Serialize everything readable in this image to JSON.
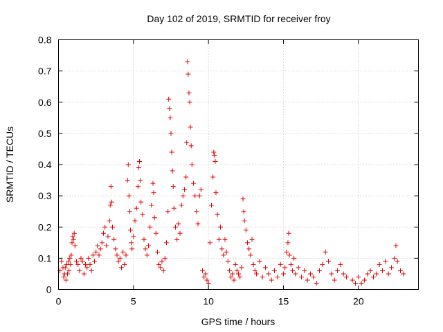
{
  "chart_data": {
    "type": "scatter",
    "title": "Day 102 of 2019, SRMTID for receiver froy",
    "xlabel": "GPS time / hours",
    "ylabel": "SRMTID / TECUs",
    "xlim": [
      0,
      24
    ],
    "ylim": [
      0,
      0.8
    ],
    "xticks": [
      0,
      5,
      10,
      15,
      20
    ],
    "xtick_labels": [
      "0",
      "5",
      "10",
      "15",
      "20"
    ],
    "yticks": [
      0,
      0.1,
      0.2,
      0.3,
      0.4,
      0.5,
      0.6,
      0.7,
      0.8
    ],
    "ytick_labels": [
      "0",
      "0.1",
      "0.2",
      "0.3",
      "0.4",
      "0.5",
      "0.6",
      "0.7",
      "0.8"
    ],
    "grid": true,
    "marker": "+",
    "color": "#e00000",
    "series": [
      {
        "name": "SRMTID",
        "points": [
          [
            0.1,
            0.06
          ],
          [
            0.2,
            0.09
          ],
          [
            0.3,
            0.07
          ],
          [
            0.35,
            0.04
          ],
          [
            0.4,
            0.05
          ],
          [
            0.45,
            0.07
          ],
          [
            0.5,
            0.03
          ],
          [
            0.55,
            0.08
          ],
          [
            0.6,
            0.05
          ],
          [
            0.65,
            0.09
          ],
          [
            0.7,
            0.06
          ],
          [
            0.75,
            0.1
          ],
          [
            0.8,
            0.08
          ],
          [
            0.85,
            0.11
          ],
          [
            0.9,
            0.15
          ],
          [
            0.95,
            0.17
          ],
          [
            1.0,
            0.16
          ],
          [
            1.05,
            0.18
          ],
          [
            1.1,
            0.14
          ],
          [
            1.2,
            0.09
          ],
          [
            1.3,
            0.08
          ],
          [
            1.4,
            0.06
          ],
          [
            1.5,
            0.1
          ],
          [
            1.6,
            0.09
          ],
          [
            1.7,
            0.05
          ],
          [
            1.8,
            0.08
          ],
          [
            1.9,
            0.07
          ],
          [
            2.0,
            0.1
          ],
          [
            2.1,
            0.08
          ],
          [
            2.2,
            0.06
          ],
          [
            2.3,
            0.11
          ],
          [
            2.4,
            0.09
          ],
          [
            2.5,
            0.12
          ],
          [
            2.6,
            0.14
          ],
          [
            2.7,
            0.11
          ],
          [
            2.8,
            0.13
          ],
          [
            2.9,
            0.15
          ],
          [
            3.0,
            0.18
          ],
          [
            3.1,
            0.2
          ],
          [
            3.2,
            0.14
          ],
          [
            3.3,
            0.17
          ],
          [
            3.4,
            0.22
          ],
          [
            3.45,
            0.27
          ],
          [
            3.5,
            0.33
          ],
          [
            3.55,
            0.28
          ],
          [
            3.6,
            0.2
          ],
          [
            3.7,
            0.16
          ],
          [
            3.8,
            0.13
          ],
          [
            3.9,
            0.11
          ],
          [
            4.0,
            0.09
          ],
          [
            4.1,
            0.1
          ],
          [
            4.2,
            0.07
          ],
          [
            4.3,
            0.12
          ],
          [
            4.4,
            0.08
          ],
          [
            4.5,
            0.11
          ],
          [
            4.6,
            0.35
          ],
          [
            4.65,
            0.4
          ],
          [
            4.7,
            0.3
          ],
          [
            4.75,
            0.25
          ],
          [
            4.8,
            0.19
          ],
          [
            4.85,
            0.15
          ],
          [
            4.9,
            0.13
          ],
          [
            5.0,
            0.17
          ],
          [
            5.1,
            0.22
          ],
          [
            5.2,
            0.26
          ],
          [
            5.3,
            0.33
          ],
          [
            5.35,
            0.39
          ],
          [
            5.4,
            0.41
          ],
          [
            5.45,
            0.35
          ],
          [
            5.5,
            0.28
          ],
          [
            5.6,
            0.24
          ],
          [
            5.7,
            0.16
          ],
          [
            5.8,
            0.13
          ],
          [
            5.9,
            0.11
          ],
          [
            6.0,
            0.14
          ],
          [
            6.1,
            0.2
          ],
          [
            6.2,
            0.27
          ],
          [
            6.3,
            0.34
          ],
          [
            6.35,
            0.31
          ],
          [
            6.4,
            0.23
          ],
          [
            6.5,
            0.18
          ],
          [
            6.6,
            0.12
          ],
          [
            6.7,
            0.08
          ],
          [
            6.8,
            0.07
          ],
          [
            6.9,
            0.09
          ],
          [
            7.0,
            0.06
          ],
          [
            7.1,
            0.1
          ],
          [
            7.2,
            0.15
          ],
          [
            7.3,
            0.25
          ],
          [
            7.35,
            0.61
          ],
          [
            7.4,
            0.58
          ],
          [
            7.45,
            0.55
          ],
          [
            7.5,
            0.5
          ],
          [
            7.55,
            0.44
          ],
          [
            7.6,
            0.38
          ],
          [
            7.65,
            0.33
          ],
          [
            7.7,
            0.26
          ],
          [
            7.8,
            0.2
          ],
          [
            7.9,
            0.16
          ],
          [
            8.0,
            0.21
          ],
          [
            8.1,
            0.18
          ],
          [
            8.2,
            0.27
          ],
          [
            8.3,
            0.3
          ],
          [
            8.4,
            0.32
          ],
          [
            8.5,
            0.36
          ],
          [
            8.55,
            0.47
          ],
          [
            8.6,
            0.73
          ],
          [
            8.65,
            0.69
          ],
          [
            8.7,
            0.63
          ],
          [
            8.75,
            0.6
          ],
          [
            8.8,
            0.52
          ],
          [
            8.85,
            0.46
          ],
          [
            8.9,
            0.4
          ],
          [
            9.0,
            0.34
          ],
          [
            9.1,
            0.3
          ],
          [
            9.2,
            0.25
          ],
          [
            9.3,
            0.21
          ],
          [
            9.4,
            0.3
          ],
          [
            9.5,
            0.32
          ],
          [
            9.6,
            0.06
          ],
          [
            9.7,
            0.04
          ],
          [
            9.8,
            0.05
          ],
          [
            9.9,
            0.03
          ],
          [
            10.0,
            0.02
          ],
          [
            10.1,
            0.15
          ],
          [
            10.2,
            0.27
          ],
          [
            10.3,
            0.36
          ],
          [
            10.35,
            0.44
          ],
          [
            10.4,
            0.43
          ],
          [
            10.45,
            0.41
          ],
          [
            10.5,
            0.31
          ],
          [
            10.6,
            0.24
          ],
          [
            10.7,
            0.16
          ],
          [
            10.8,
            0.2
          ],
          [
            10.9,
            0.13
          ],
          [
            11.0,
            0.11
          ],
          [
            11.1,
            0.16
          ],
          [
            11.2,
            0.12
          ],
          [
            11.3,
            0.09
          ],
          [
            11.4,
            0.06
          ],
          [
            11.5,
            0.04
          ],
          [
            11.6,
            0.05
          ],
          [
            11.7,
            0.03
          ],
          [
            11.8,
            0.08
          ],
          [
            11.9,
            0.06
          ],
          [
            12.0,
            0.05
          ],
          [
            12.1,
            0.04
          ],
          [
            12.2,
            0.07
          ],
          [
            12.3,
            0.29
          ],
          [
            12.35,
            0.25
          ],
          [
            12.4,
            0.22
          ],
          [
            12.5,
            0.19
          ],
          [
            12.6,
            0.15
          ],
          [
            12.7,
            0.13
          ],
          [
            12.8,
            0.11
          ],
          [
            12.9,
            0.16
          ],
          [
            13.0,
            0.08
          ],
          [
            13.1,
            0.06
          ],
          [
            13.2,
            0.05
          ],
          [
            13.4,
            0.09
          ],
          [
            13.6,
            0.04
          ],
          [
            13.8,
            0.07
          ],
          [
            14.0,
            0.05
          ],
          [
            14.2,
            0.03
          ],
          [
            14.4,
            0.06
          ],
          [
            14.6,
            0.04
          ],
          [
            14.8,
            0.08
          ],
          [
            15.0,
            0.05
          ],
          [
            15.1,
            0.07
          ],
          [
            15.2,
            0.12
          ],
          [
            15.3,
            0.15
          ],
          [
            15.35,
            0.18
          ],
          [
            15.4,
            0.11
          ],
          [
            15.5,
            0.08
          ],
          [
            15.6,
            0.06
          ],
          [
            15.7,
            0.1
          ],
          [
            15.8,
            0.05
          ],
          [
            16.0,
            0.07
          ],
          [
            16.2,
            0.04
          ],
          [
            16.4,
            0.06
          ],
          [
            16.6,
            0.03
          ],
          [
            16.8,
            0.05
          ],
          [
            17.0,
            0.04
          ],
          [
            17.2,
            0.02
          ],
          [
            17.4,
            0.06
          ],
          [
            17.6,
            0.08
          ],
          [
            17.8,
            0.12
          ],
          [
            18.0,
            0.09
          ],
          [
            18.2,
            0.05
          ],
          [
            18.4,
            0.03
          ],
          [
            18.6,
            0.06
          ],
          [
            18.8,
            0.08
          ],
          [
            19.0,
            0.05
          ],
          [
            19.2,
            0.04
          ],
          [
            19.6,
            0.03
          ],
          [
            19.8,
            0.02
          ],
          [
            20.0,
            0.04
          ],
          [
            20.2,
            0.02
          ],
          [
            20.4,
            0.03
          ],
          [
            20.6,
            0.05
          ],
          [
            20.8,
            0.06
          ],
          [
            21.0,
            0.04
          ],
          [
            21.2,
            0.05
          ],
          [
            21.4,
            0.08
          ],
          [
            21.6,
            0.06
          ],
          [
            21.8,
            0.09
          ],
          [
            22.0,
            0.05
          ],
          [
            22.2,
            0.07
          ],
          [
            22.4,
            0.1
          ],
          [
            22.5,
            0.14
          ],
          [
            22.6,
            0.09
          ],
          [
            22.8,
            0.06
          ],
          [
            23.0,
            0.05
          ]
        ]
      }
    ]
  }
}
